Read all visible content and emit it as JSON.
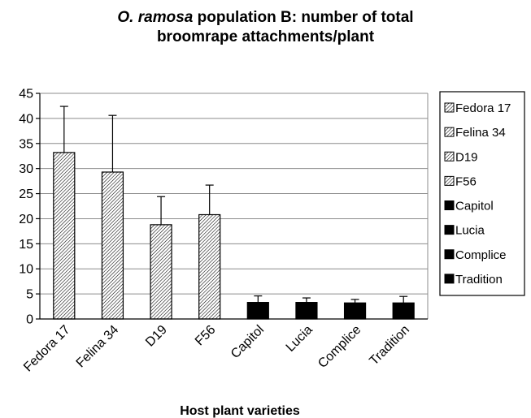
{
  "chart_data": {
    "type": "bar",
    "title": {
      "italic_part": "O. ramosa",
      "rest_line1": " population B: number of total",
      "line2": "broomrape attachments/plant"
    },
    "xlabel": "Host plant varieties",
    "ylabel": "",
    "ylim": [
      0,
      45
    ],
    "yticks": [
      "0",
      "5",
      "10",
      "15",
      "20",
      "25",
      "30",
      "35",
      "40",
      "45"
    ],
    "ytick_values": [
      0,
      5,
      10,
      15,
      20,
      25,
      30,
      35,
      40,
      45
    ],
    "grid": true,
    "legend_position": "right",
    "categories": [
      "Fedora 17",
      "Felina 34",
      "D19",
      "F56",
      "Capitol",
      "Lucia",
      "Complice",
      "Tradition"
    ],
    "values": [
      33.2,
      29.3,
      18.8,
      20.8,
      3.3,
      3.3,
      3.2,
      3.2
    ],
    "errors": [
      9.2,
      11.3,
      5.6,
      5.9,
      1.3,
      0.9,
      0.7,
      1.3
    ],
    "fills": [
      "hatch",
      "hatch",
      "hatch",
      "hatch",
      "solid",
      "solid",
      "solid",
      "solid"
    ]
  },
  "colors": {
    "solid": "#000000",
    "hatch_line": "#000000",
    "hatch_bg": "#ffffff",
    "grid": "#8c8c8c"
  }
}
